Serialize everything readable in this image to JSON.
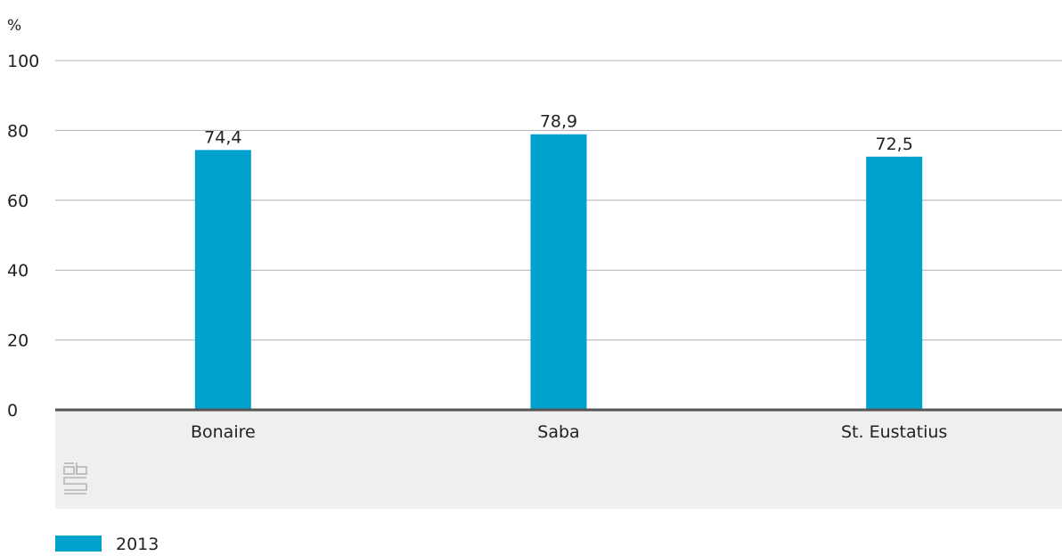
{
  "chart_data": {
    "type": "bar",
    "ylabel": "%",
    "ylim": [
      0,
      100
    ],
    "yticks": [
      0,
      20,
      40,
      60,
      80,
      100
    ],
    "categories": [
      "Bonaire",
      "Saba",
      "St. Eustatius"
    ],
    "series": [
      {
        "name": "2013",
        "values": [
          74.4,
          78.9,
          72.5
        ],
        "labels": [
          "74,4",
          "78,9",
          "72,5"
        ],
        "color": "#00a1cd"
      }
    ],
    "grid": true,
    "legend": "bottom-left"
  },
  "colors": {
    "bar": "#00a1cd",
    "grid": "#b0b0b0",
    "axis": "#555555",
    "category_band": "#efefef",
    "logo": "#b5b5b5"
  },
  "logo": {
    "icon": "cbs-logo-icon"
  }
}
